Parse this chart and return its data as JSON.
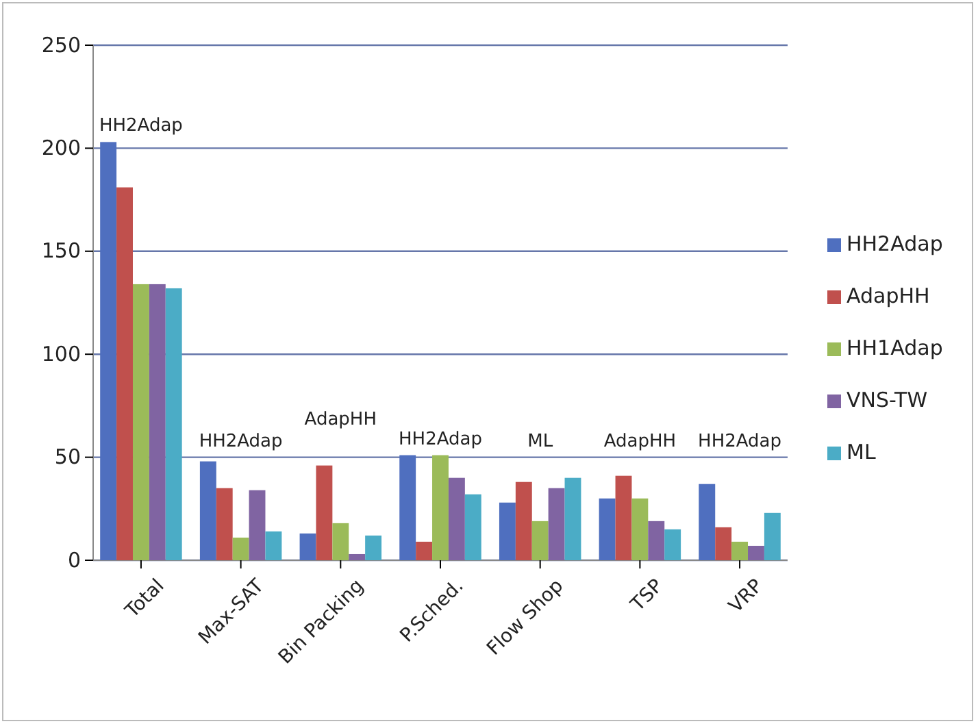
{
  "chart_data": {
    "type": "bar",
    "categories": [
      "Total",
      "Max-SAT",
      "Bin Packing",
      "P.Sched.",
      "Flow Shop",
      "TSP",
      "VRP"
    ],
    "series": [
      {
        "name": "HH2Adap",
        "color": "#4f6fbf",
        "values": [
          203,
          48,
          13,
          51,
          28,
          30,
          37
        ]
      },
      {
        "name": "AdapHH",
        "color": "#c0504d",
        "values": [
          181,
          35,
          46,
          9,
          38,
          41,
          16
        ]
      },
      {
        "name": "HH1Adap",
        "color": "#9bbb59",
        "values": [
          134,
          11,
          18,
          51,
          19,
          30,
          9
        ]
      },
      {
        "name": "VNS-TW",
        "color": "#8064a2",
        "values": [
          134,
          34,
          3,
          40,
          35,
          19,
          7
        ]
      },
      {
        "name": "ML",
        "color": "#4bacc6",
        "values": [
          132,
          14,
          12,
          32,
          40,
          15,
          23
        ]
      }
    ],
    "ylim": [
      0,
      250
    ],
    "yticks": [
      0,
      50,
      100,
      150,
      200,
      250
    ],
    "grid": "y",
    "legend": "right",
    "annotations": [
      "HH2Adap",
      "HH2Adap",
      "AdapHH",
      "HH2Adap",
      "ML",
      "AdapHH",
      "HH2Adap"
    ]
  }
}
